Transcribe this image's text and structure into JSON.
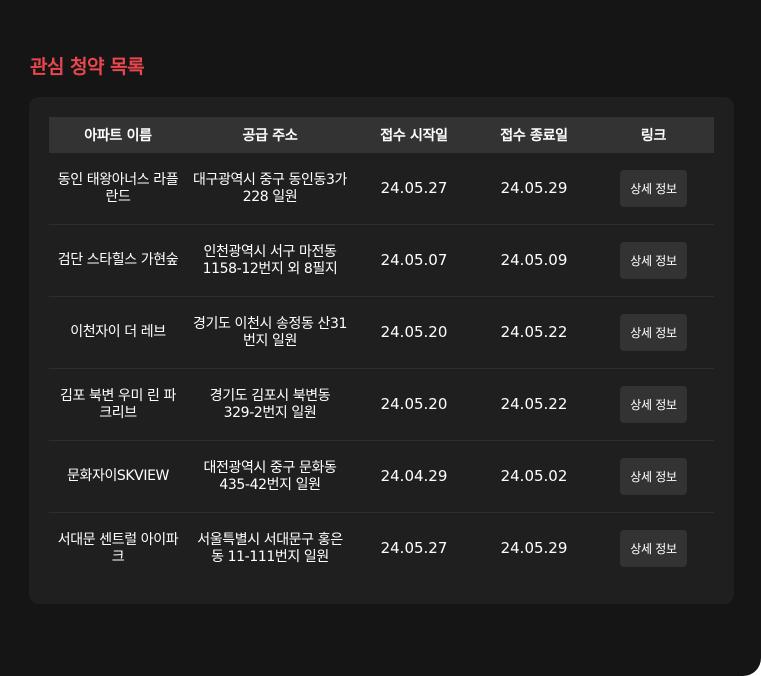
{
  "page": {
    "title": "관심 청약 목록"
  },
  "table": {
    "headers": [
      "아파트 이름",
      "공급 주소",
      "접수 시작일",
      "접수 종료일",
      "링크"
    ],
    "rows": [
      {
        "name": "동인 태왕아너스 라플란드",
        "address": "대구광역시 중구 동인동3가 228 일원",
        "start": "24.05.27",
        "end": "24.05.29",
        "link_label": "상세 정보"
      },
      {
        "name": "검단 스타힐스 가현숲",
        "address": "인천광역시 서구 마전동 1158-12번지 외 8필지",
        "start": "24.05.07",
        "end": "24.05.09",
        "link_label": "상세 정보"
      },
      {
        "name": "이천자이 더 레브",
        "address": "경기도 이천시 송정동 산31번지 일원",
        "start": "24.05.20",
        "end": "24.05.22",
        "link_label": "상세 정보"
      },
      {
        "name": "김포 북변 우미 린 파크리브",
        "address": "경기도 김포시 북변동 329-2번지 일원",
        "start": "24.05.20",
        "end": "24.05.22",
        "link_label": "상세 정보"
      },
      {
        "name": "문화자이SKVIEW",
        "address": "대전광역시 중구 문화동 435-42번지 일원",
        "start": "24.04.29",
        "end": "24.05.02",
        "link_label": "상세 정보"
      },
      {
        "name": "서대문 센트럴 아이파크",
        "address": "서울특별시 서대문구 홍은동 11-111번지 일원",
        "start": "24.05.27",
        "end": "24.05.29",
        "link_label": "상세 정보"
      }
    ]
  },
  "colors": {
    "title": "#e8474d",
    "background": "#151515",
    "card": "#1f1f1f",
    "header": "#333333",
    "button": "#333333"
  }
}
